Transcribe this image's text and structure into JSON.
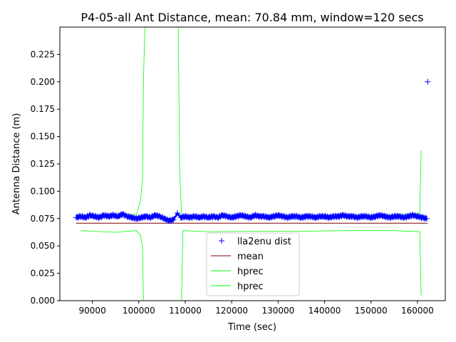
{
  "chart_data": {
    "type": "scatter",
    "title": "P4-05-all Ant Distance, mean: 70.84 mm, window=120 secs",
    "xlabel": "Time (sec)",
    "ylabel": "Antenna Distance (m)",
    "xlim": [
      83000,
      166000
    ],
    "ylim": [
      0.0,
      0.25
    ],
    "xticks": [
      90000,
      100000,
      110000,
      120000,
      130000,
      140000,
      150000,
      160000
    ],
    "xtick_labels": [
      "90000",
      "100000",
      "110000",
      "120000",
      "130000",
      "140000",
      "150000",
      "160000"
    ],
    "yticks": [
      0.0,
      0.025,
      0.05,
      0.075,
      0.1,
      0.125,
      0.15,
      0.175,
      0.2,
      0.225
    ],
    "ytick_labels": [
      "0.000",
      "0.025",
      "0.050",
      "0.075",
      "0.100",
      "0.125",
      "0.150",
      "0.175",
      "0.200",
      "0.225"
    ],
    "grid": false,
    "legend_position": "lower-center",
    "colors": {
      "dist": "#0000ff",
      "mean": "#800000",
      "hprec": "#00ff00"
    },
    "series": [
      {
        "name": "lla2enu dist",
        "kind": "marker",
        "marker": "+",
        "x": [
          86500,
          87500,
          88500,
          89500,
          90500,
          91500,
          92500,
          93500,
          94500,
          95500,
          96500,
          97500,
          98500,
          99500,
          100500,
          101500,
          102500,
          103500,
          104500,
          105500,
          106500,
          107500,
          108300,
          109000,
          110000,
          111000,
          112000,
          113000,
          114000,
          115000,
          116000,
          117000,
          118000,
          119000,
          120000,
          121000,
          122000,
          123000,
          124000,
          125000,
          126000,
          127000,
          128000,
          129000,
          130000,
          131000,
          132000,
          133000,
          134000,
          135000,
          136000,
          137000,
          138000,
          139000,
          140000,
          141000,
          142000,
          143000,
          144000,
          145000,
          146000,
          147000,
          148000,
          149000,
          150000,
          151000,
          152000,
          153000,
          154000,
          155000,
          156000,
          157000,
          158000,
          159000,
          160000,
          161000,
          162000,
          162200
        ],
        "y": [
          0.076,
          0.077,
          0.076,
          0.078,
          0.077,
          0.076,
          0.078,
          0.077,
          0.078,
          0.077,
          0.079,
          0.077,
          0.076,
          0.075,
          0.076,
          0.077,
          0.076,
          0.078,
          0.077,
          0.075,
          0.073,
          0.074,
          0.08,
          0.076,
          0.077,
          0.076,
          0.077,
          0.076,
          0.077,
          0.076,
          0.077,
          0.076,
          0.078,
          0.077,
          0.076,
          0.077,
          0.078,
          0.077,
          0.076,
          0.078,
          0.077,
          0.077,
          0.076,
          0.077,
          0.078,
          0.077,
          0.076,
          0.077,
          0.077,
          0.076,
          0.077,
          0.077,
          0.076,
          0.077,
          0.077,
          0.076,
          0.077,
          0.077,
          0.078,
          0.077,
          0.077,
          0.076,
          0.077,
          0.077,
          0.076,
          0.077,
          0.078,
          0.077,
          0.076,
          0.077,
          0.077,
          0.076,
          0.077,
          0.078,
          0.077,
          0.076,
          0.075,
          0.2
        ]
      },
      {
        "name": "mean",
        "kind": "line",
        "x": [
          86500,
          162200
        ],
        "y": [
          0.07084,
          0.07084
        ]
      },
      {
        "name": "hprec",
        "kind": "line",
        "x": [
          86500,
          87500,
          95000,
          99500,
          100300,
          100800,
          101000,
          101300,
          108500,
          108800,
          109200,
          115000,
          125000,
          135000,
          145000,
          155000,
          160500,
          160800
        ],
        "y": [
          0.078,
          0.078,
          0.078,
          0.079,
          0.09,
          0.11,
          0.2,
          0.25,
          0.25,
          0.12,
          0.078,
          0.077,
          0.078,
          0.077,
          0.078,
          0.078,
          0.08,
          0.137
        ]
      },
      {
        "name": "hprec",
        "kind": "line",
        "x": [
          87500,
          95000,
          99500,
          100300,
          100800,
          101000,
          109200,
          109500,
          115000,
          125000,
          135000,
          145000,
          155000,
          160500,
          160800
        ],
        "y": [
          0.064,
          0.0625,
          0.064,
          0.06,
          0.05,
          0.0,
          0.0,
          0.064,
          0.063,
          0.0635,
          0.0635,
          0.064,
          0.064,
          0.063,
          0.005
        ]
      }
    ]
  }
}
